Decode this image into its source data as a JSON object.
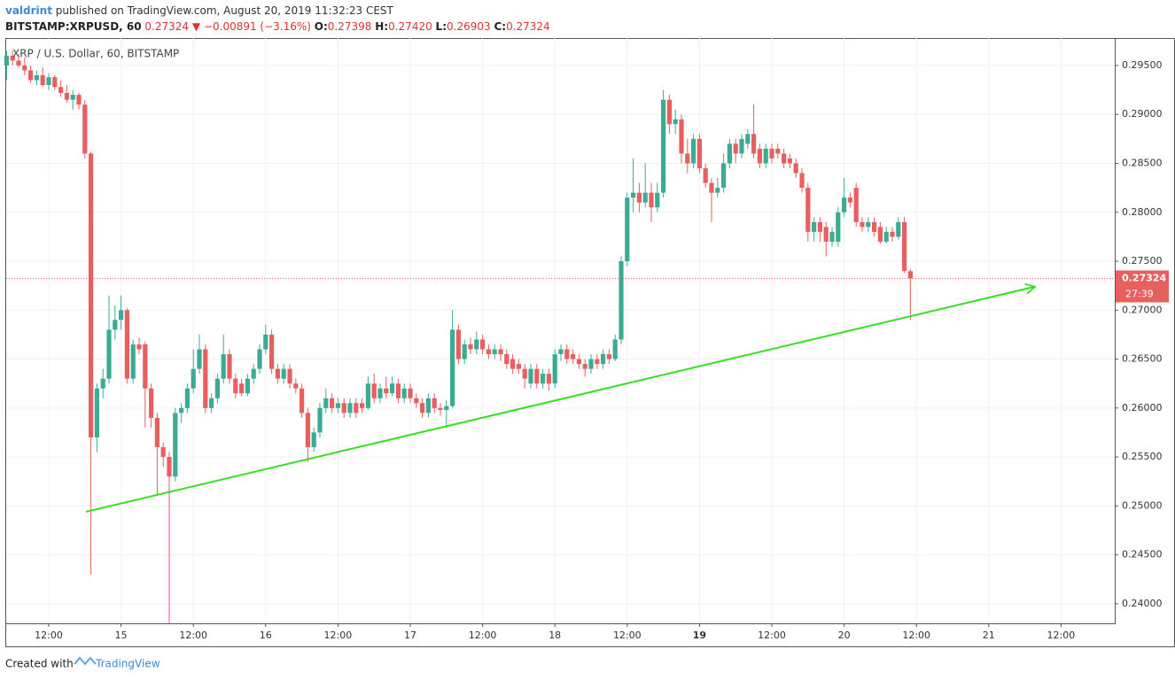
{
  "chart_data": {
    "type": "candlestick",
    "header": {
      "author": "valdrint",
      "published": "published on TradingView.com, August 20, 2019 11:32:23 CEST",
      "symbol": "BITSTAMP:XRPUSD, 60",
      "last": "0.27324",
      "arrow": "▼",
      "change": "−0.00891 (−3.16%)",
      "o_label": "O:",
      "o": "0.27398",
      "h_label": "H:",
      "h": "0.27420",
      "l_label": "L:",
      "l": "0.26903",
      "c_label": "C:",
      "c": "0.27324"
    },
    "legend": "XRP / U.S. Dollar, 60, BITSTAMP",
    "countdown": "27:39",
    "footer": {
      "prefix": "Created with",
      "brand": "TradingView"
    },
    "up_color": "#3cab94",
    "down_color": "#e75f5f",
    "ylim": [
      0.238,
      0.2978
    ],
    "yticks": [
      {
        "value": 0.24,
        "label": "0.24000"
      },
      {
        "value": 0.245,
        "label": "0.24500"
      },
      {
        "value": 0.25,
        "label": "0.25000"
      },
      {
        "value": 0.255,
        "label": "0.25500"
      },
      {
        "value": 0.26,
        "label": "0.26000"
      },
      {
        "value": 0.265,
        "label": "0.26500"
      },
      {
        "value": 0.27,
        "label": "0.27000"
      },
      {
        "value": 0.275,
        "label": "0.27500"
      },
      {
        "value": 0.28,
        "label": "0.28000"
      },
      {
        "value": 0.285,
        "label": "0.28500"
      },
      {
        "value": 0.29,
        "label": "0.29000"
      },
      {
        "value": 0.295,
        "label": "0.29500"
      }
    ],
    "x_tick_labels": [
      "12:00",
      "15",
      "12:00",
      "16",
      "12:00",
      "17",
      "12:00",
      "18",
      "12:00",
      "19",
      "12:00",
      "20",
      "12:00",
      "21",
      "12:00"
    ],
    "grid": true,
    "candles": [
      [
        0.295,
        0.2965,
        0.2935,
        0.296
      ],
      [
        0.296,
        0.2965,
        0.295,
        0.2955
      ],
      [
        0.2955,
        0.2962,
        0.2948,
        0.295
      ],
      [
        0.295,
        0.2958,
        0.294,
        0.2945
      ],
      [
        0.2945,
        0.295,
        0.2932,
        0.2935
      ],
      [
        0.2935,
        0.2945,
        0.293,
        0.294
      ],
      [
        0.294,
        0.2948,
        0.2928,
        0.293
      ],
      [
        0.293,
        0.2942,
        0.2925,
        0.2938
      ],
      [
        0.2938,
        0.294,
        0.2925,
        0.2928
      ],
      [
        0.2928,
        0.2935,
        0.2918,
        0.2922
      ],
      [
        0.2922,
        0.293,
        0.2912,
        0.2915
      ],
      [
        0.2915,
        0.2925,
        0.2905,
        0.292
      ],
      [
        0.292,
        0.2922,
        0.2905,
        0.291
      ],
      [
        0.291,
        0.2915,
        0.2855,
        0.286
      ],
      [
        0.286,
        0.2862,
        0.243,
        0.257
      ],
      [
        0.257,
        0.2625,
        0.2555,
        0.262
      ],
      [
        0.262,
        0.264,
        0.261,
        0.263
      ],
      [
        0.263,
        0.2715,
        0.2625,
        0.268
      ],
      [
        0.268,
        0.2705,
        0.267,
        0.269
      ],
      [
        0.269,
        0.2715,
        0.268,
        0.27
      ],
      [
        0.27,
        0.2702,
        0.2625,
        0.263
      ],
      [
        0.263,
        0.267,
        0.2625,
        0.2665
      ],
      [
        0.2665,
        0.2672,
        0.2655,
        0.266
      ],
      [
        0.2665,
        0.2668,
        0.258,
        0.262
      ],
      [
        0.262,
        0.2625,
        0.258,
        0.259
      ],
      [
        0.259,
        0.2595,
        0.251,
        0.256
      ],
      [
        0.256,
        0.2565,
        0.254,
        0.255
      ],
      [
        0.255,
        0.2555,
        0.238,
        0.253
      ],
      [
        0.253,
        0.26,
        0.2525,
        0.2595
      ],
      [
        0.2595,
        0.2605,
        0.2585,
        0.26
      ],
      [
        0.26,
        0.2625,
        0.2595,
        0.262
      ],
      [
        0.262,
        0.266,
        0.2615,
        0.264
      ],
      [
        0.264,
        0.2675,
        0.2635,
        0.266
      ],
      [
        0.266,
        0.2665,
        0.2595,
        0.26
      ],
      [
        0.26,
        0.2615,
        0.2595,
        0.261
      ],
      [
        0.261,
        0.2635,
        0.2605,
        0.263
      ],
      [
        0.263,
        0.2675,
        0.2625,
        0.2655
      ],
      [
        0.2655,
        0.266,
        0.2625,
        0.263
      ],
      [
        0.263,
        0.2635,
        0.261,
        0.2615
      ],
      [
        0.2625,
        0.263,
        0.2612,
        0.2615
      ],
      [
        0.2615,
        0.2635,
        0.2612,
        0.263
      ],
      [
        0.263,
        0.2645,
        0.2625,
        0.264
      ],
      [
        0.264,
        0.2665,
        0.2635,
        0.266
      ],
      [
        0.266,
        0.2685,
        0.2655,
        0.2675
      ],
      [
        0.2675,
        0.268,
        0.2635,
        0.264
      ],
      [
        0.264,
        0.2645,
        0.2625,
        0.263
      ],
      [
        0.263,
        0.2645,
        0.2625,
        0.264
      ],
      [
        0.264,
        0.2645,
        0.262,
        0.2625
      ],
      [
        0.2625,
        0.263,
        0.2615,
        0.262
      ],
      [
        0.262,
        0.2625,
        0.259,
        0.2595
      ],
      [
        0.2595,
        0.26,
        0.2545,
        0.256
      ],
      [
        0.256,
        0.258,
        0.2555,
        0.2575
      ],
      [
        0.2575,
        0.2605,
        0.257,
        0.26
      ],
      [
        0.26,
        0.262,
        0.2595,
        0.261
      ],
      [
        0.261,
        0.2615,
        0.2595,
        0.26
      ],
      [
        0.26,
        0.261,
        0.2595,
        0.2605
      ],
      [
        0.2605,
        0.261,
        0.259,
        0.2595
      ],
      [
        0.2595,
        0.261,
        0.259,
        0.2605
      ],
      [
        0.2605,
        0.261,
        0.259,
        0.2595
      ],
      [
        0.2605,
        0.261,
        0.2595,
        0.26
      ],
      [
        0.26,
        0.2632,
        0.2598,
        0.2625
      ],
      [
        0.2625,
        0.2635,
        0.2605,
        0.261
      ],
      [
        0.261,
        0.2625,
        0.2605,
        0.262
      ],
      [
        0.262,
        0.2632,
        0.261,
        0.2615
      ],
      [
        0.2615,
        0.2632,
        0.2612,
        0.2625
      ],
      [
        0.2625,
        0.263,
        0.2605,
        0.261
      ],
      [
        0.261,
        0.2625,
        0.2605,
        0.262
      ],
      [
        0.262,
        0.2625,
        0.2605,
        0.261
      ],
      [
        0.261,
        0.2615,
        0.26,
        0.2605
      ],
      [
        0.2605,
        0.261,
        0.259,
        0.2595
      ],
      [
        0.2595,
        0.2615,
        0.259,
        0.261
      ],
      [
        0.261,
        0.2615,
        0.2595,
        0.26
      ],
      [
        0.26,
        0.2605,
        0.2592,
        0.2598
      ],
      [
        0.2598,
        0.2608,
        0.258,
        0.2602
      ],
      [
        0.2602,
        0.27,
        0.26,
        0.268
      ],
      [
        0.268,
        0.2685,
        0.2645,
        0.265
      ],
      [
        0.265,
        0.267,
        0.2645,
        0.2665
      ],
      [
        0.2665,
        0.2672,
        0.2655,
        0.266
      ],
      [
        0.266,
        0.2678,
        0.2655,
        0.267
      ],
      [
        0.267,
        0.2675,
        0.2655,
        0.266
      ],
      [
        0.266,
        0.2665,
        0.265,
        0.2655
      ],
      [
        0.2655,
        0.2665,
        0.265,
        0.266
      ],
      [
        0.266,
        0.2665,
        0.2648,
        0.2655
      ],
      [
        0.2655,
        0.266,
        0.264,
        0.2645
      ],
      [
        0.265,
        0.2655,
        0.2635,
        0.264
      ],
      [
        0.2645,
        0.265,
        0.2635,
        0.264
      ],
      [
        0.264,
        0.2645,
        0.262,
        0.263
      ],
      [
        0.2625,
        0.2645,
        0.262,
        0.264
      ],
      [
        0.264,
        0.2645,
        0.262,
        0.2625
      ],
      [
        0.2625,
        0.264,
        0.262,
        0.2635
      ],
      [
        0.2635,
        0.264,
        0.2618,
        0.2625
      ],
      [
        0.2625,
        0.266,
        0.262,
        0.2655
      ],
      [
        0.2655,
        0.2665,
        0.2648,
        0.266
      ],
      [
        0.266,
        0.2665,
        0.2645,
        0.265
      ],
      [
        0.2655,
        0.266,
        0.2645,
        0.265
      ],
      [
        0.265,
        0.2655,
        0.264,
        0.2645
      ],
      [
        0.2645,
        0.265,
        0.2632,
        0.264
      ],
      [
        0.264,
        0.2655,
        0.2635,
        0.265
      ],
      [
        0.265,
        0.2655,
        0.264,
        0.2645
      ],
      [
        0.2645,
        0.266,
        0.264,
        0.2655
      ],
      [
        0.2655,
        0.266,
        0.2645,
        0.265
      ],
      [
        0.265,
        0.2675,
        0.2648,
        0.267
      ],
      [
        0.267,
        0.2755,
        0.2665,
        0.275
      ],
      [
        0.275,
        0.282,
        0.2745,
        0.2815
      ],
      [
        0.2815,
        0.2855,
        0.28,
        0.282
      ],
      [
        0.282,
        0.283,
        0.28,
        0.281
      ],
      [
        0.281,
        0.285,
        0.2805,
        0.282
      ],
      [
        0.282,
        0.283,
        0.279,
        0.2805
      ],
      [
        0.2805,
        0.283,
        0.28,
        0.282
      ],
      [
        0.282,
        0.2925,
        0.2815,
        0.2915
      ],
      [
        0.2915,
        0.292,
        0.288,
        0.289
      ],
      [
        0.289,
        0.2905,
        0.288,
        0.2895
      ],
      [
        0.2895,
        0.29,
        0.285,
        0.286
      ],
      [
        0.286,
        0.2875,
        0.284,
        0.285
      ],
      [
        0.285,
        0.288,
        0.2845,
        0.2875
      ],
      [
        0.2875,
        0.288,
        0.284,
        0.2845
      ],
      [
        0.2845,
        0.285,
        0.2825,
        0.283
      ],
      [
        0.283,
        0.2835,
        0.279,
        0.282
      ],
      [
        0.282,
        0.2835,
        0.2815,
        0.2825
      ],
      [
        0.2825,
        0.286,
        0.282,
        0.285
      ],
      [
        0.285,
        0.2875,
        0.2845,
        0.287
      ],
      [
        0.287,
        0.2875,
        0.285,
        0.286
      ],
      [
        0.286,
        0.288,
        0.2855,
        0.2875
      ],
      [
        0.287,
        0.2885,
        0.2865,
        0.288
      ],
      [
        0.288,
        0.291,
        0.2855,
        0.286
      ],
      [
        0.2865,
        0.287,
        0.2845,
        0.285
      ],
      [
        0.285,
        0.287,
        0.2845,
        0.2865
      ],
      [
        0.2865,
        0.287,
        0.285,
        0.2855
      ],
      [
        0.2865,
        0.287,
        0.2855,
        0.286
      ],
      [
        0.286,
        0.2865,
        0.2845,
        0.285
      ],
      [
        0.2855,
        0.286,
        0.2845,
        0.285
      ],
      [
        0.285,
        0.2855,
        0.2835,
        0.284
      ],
      [
        0.284,
        0.2845,
        0.282,
        0.2825
      ],
      [
        0.2825,
        0.283,
        0.277,
        0.278
      ],
      [
        0.278,
        0.2795,
        0.277,
        0.279
      ],
      [
        0.279,
        0.2795,
        0.277,
        0.278
      ],
      [
        0.2785,
        0.279,
        0.2755,
        0.277
      ],
      [
        0.277,
        0.2785,
        0.2765,
        0.278
      ],
      [
        0.277,
        0.2805,
        0.2765,
        0.28
      ],
      [
        0.28,
        0.2835,
        0.2795,
        0.2815
      ],
      [
        0.2815,
        0.282,
        0.2805,
        0.281
      ],
      [
        0.2825,
        0.283,
        0.2785,
        0.279
      ],
      [
        0.279,
        0.2795,
        0.278,
        0.2785
      ],
      [
        0.2785,
        0.2795,
        0.278,
        0.279
      ],
      [
        0.279,
        0.2795,
        0.2775,
        0.278
      ],
      [
        0.2785,
        0.279,
        0.2768,
        0.277
      ],
      [
        0.277,
        0.2785,
        0.2768,
        0.278
      ],
      [
        0.278,
        0.2785,
        0.277,
        0.2775
      ],
      [
        0.2775,
        0.2795,
        0.2772,
        0.279
      ],
      [
        0.279,
        0.2795,
        0.2738,
        0.274
      ],
      [
        0.27398,
        0.2742,
        0.26903,
        0.27324
      ]
    ]
  }
}
